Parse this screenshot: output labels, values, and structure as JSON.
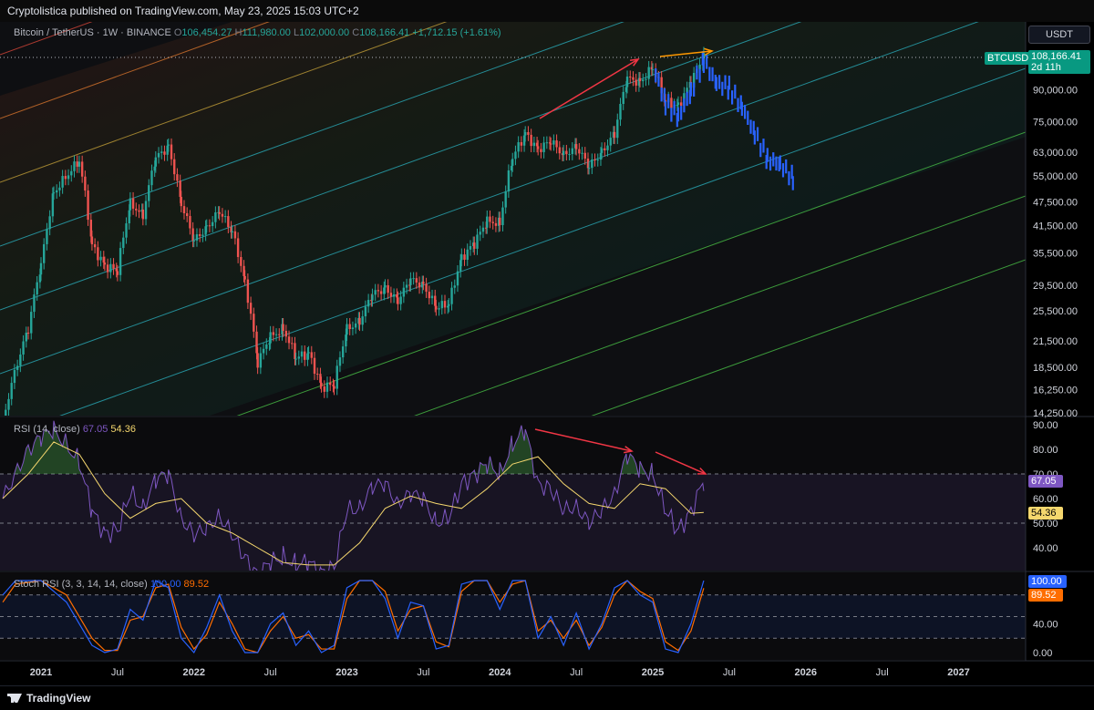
{
  "header": {
    "published_by": "Cryptolistica published on TradingView.com, May 23, 2025 15:03 UTC+2"
  },
  "footer": {
    "brand": "TradingView"
  },
  "symbol_bar": {
    "symbol": "Bitcoin / TetherUS · 1W · BINANCE",
    "open_label": "O",
    "open": "106,454.27",
    "high_label": "H",
    "high": "111,980.00",
    "low_label": "L",
    "low": "102,000.00",
    "close_label": "C",
    "close": "108,166.41",
    "change": "+1,712.15 (+1.61%)"
  },
  "currency_button": "USDT",
  "price_tag": {
    "symbol": "BTCUSDT",
    "price": "108,166.41",
    "countdown": "2d 11h"
  },
  "colors": {
    "up": "#26a69a",
    "down": "#ef5350",
    "projection": "#2962ff",
    "rsi": "#7e57c2",
    "rsi_ma": "#f5d76e",
    "stoch_k": "#2962ff",
    "stoch_d": "#ff6d00",
    "arrow_red": "#f23645",
    "arrow_orange": "#ff9800"
  },
  "chart_data": [
    {
      "type": "candlestick",
      "scale": "log",
      "ylim": [
        14250,
        115000
      ],
      "ticks": [
        14250,
        16250,
        18500,
        21500,
        25500,
        29500,
        35500,
        41500,
        47500,
        55000,
        63000,
        75000,
        90000,
        108166.41
      ],
      "tick_labels": [
        "14,250.00",
        "16,250.00",
        "18,500.00",
        "21,500.00",
        "25,500.00",
        "29,500.00",
        "35,500.00",
        "41,500.00",
        "47,500.00",
        "55,000.00",
        "63,000.00",
        "75,000.00",
        "90,000.00"
      ],
      "x_labels": [
        "2021",
        "Jul",
        "2022",
        "Jul",
        "2023",
        "Jul",
        "2024",
        "Jul",
        "2025",
        "Jul",
        "2026",
        "Jul",
        "2027"
      ],
      "x_label_dates": [
        "2021-01",
        "2021-07",
        "2022-01",
        "2022-07",
        "2023-01",
        "2023-07",
        "2024-01",
        "2024-07",
        "2025-01",
        "2025-07",
        "2026-01",
        "2026-07",
        "2027-01"
      ],
      "price_path": [
        [
          "2020-10",
          13500
        ],
        [
          "2020-12",
          23000
        ],
        [
          "2021-01",
          33000
        ],
        [
          "2021-02",
          50000
        ],
        [
          "2021-04",
          60000
        ],
        [
          "2021-05",
          37000
        ],
        [
          "2021-06",
          33000
        ],
        [
          "2021-07",
          32000
        ],
        [
          "2021-08",
          47000
        ],
        [
          "2021-09",
          44000
        ],
        [
          "2021-10",
          61000
        ],
        [
          "2021-11",
          65000
        ],
        [
          "2021-12",
          47000
        ],
        [
          "2022-01",
          38000
        ],
        [
          "2022-02",
          41000
        ],
        [
          "2022-03",
          45000
        ],
        [
          "2022-04",
          40000
        ],
        [
          "2022-05",
          30000
        ],
        [
          "2022-06",
          19000
        ],
        [
          "2022-07",
          22000
        ],
        [
          "2022-08",
          23000
        ],
        [
          "2022-09",
          19500
        ],
        [
          "2022-10",
          20000
        ],
        [
          "2022-11",
          16500
        ],
        [
          "2022-12",
          16700
        ],
        [
          "2023-01",
          23000
        ],
        [
          "2023-02",
          24000
        ],
        [
          "2023-03",
          28000
        ],
        [
          "2023-04",
          29000
        ],
        [
          "2023-05",
          27000
        ],
        [
          "2023-06",
          30500
        ],
        [
          "2023-07",
          29500
        ],
        [
          "2023-08",
          26000
        ],
        [
          "2023-09",
          26500
        ],
        [
          "2023-10",
          34500
        ],
        [
          "2023-11",
          37500
        ],
        [
          "2023-12",
          42500
        ],
        [
          "2024-01",
          42000
        ],
        [
          "2024-02",
          61000
        ],
        [
          "2024-03",
          70000
        ],
        [
          "2024-04",
          64000
        ],
        [
          "2024-05",
          67000
        ],
        [
          "2024-06",
          62000
        ],
        [
          "2024-07",
          65000
        ],
        [
          "2024-08",
          58000
        ],
        [
          "2024-09",
          63000
        ],
        [
          "2024-10",
          70000
        ],
        [
          "2024-11",
          96000
        ],
        [
          "2024-12",
          94000
        ],
        [
          "2025-01",
          102000
        ],
        [
          "2025-02",
          84000
        ],
        [
          "2025-03",
          82000
        ],
        [
          "2025-04",
          94000
        ],
        [
          "2025-05",
          108166
        ]
      ],
      "projection_path": [
        [
          "2025-01",
          103000
        ],
        [
          "2025-02",
          84000
        ],
        [
          "2025-03",
          78000
        ],
        [
          "2025-04",
          90000
        ],
        [
          "2025-05",
          108000
        ],
        [
          "2025-06",
          95000
        ],
        [
          "2025-07",
          92000
        ],
        [
          "2025-08",
          82000
        ],
        [
          "2025-09",
          70000
        ],
        [
          "2025-10",
          60000
        ],
        [
          "2025-11",
          58000
        ],
        [
          "2025-12",
          53500
        ]
      ],
      "last_price": 108166.41
    },
    {
      "type": "line",
      "name": "RSI (14, close)",
      "values_shown": [
        "67.05",
        "54.36"
      ],
      "ylim": [
        35,
        90
      ],
      "ticks": [
        40,
        50,
        60,
        70,
        80,
        90
      ],
      "tick_labels": [
        "40.00",
        "50.00",
        "60.00",
        "70.00",
        "80.00",
        "90.00"
      ],
      "bands": [
        30,
        50,
        70
      ],
      "rsi_path": [
        [
          "2020-10",
          60
        ],
        [
          "2020-12",
          80
        ],
        [
          "2021-01",
          85
        ],
        [
          "2021-02",
          88
        ],
        [
          "2021-04",
          75
        ],
        [
          "2021-05",
          55
        ],
        [
          "2021-06",
          46
        ],
        [
          "2021-07",
          47
        ],
        [
          "2021-08",
          62
        ],
        [
          "2021-09",
          56
        ],
        [
          "2021-10",
          68
        ],
        [
          "2021-11",
          70
        ],
        [
          "2021-12",
          52
        ],
        [
          "2022-01",
          45
        ],
        [
          "2022-02",
          48
        ],
        [
          "2022-03",
          53
        ],
        [
          "2022-04",
          45
        ],
        [
          "2022-05",
          36
        ],
        [
          "2022-06",
          29
        ],
        [
          "2022-07",
          34
        ],
        [
          "2022-08",
          36
        ],
        [
          "2022-09",
          33
        ],
        [
          "2022-10",
          34
        ],
        [
          "2022-11",
          30
        ],
        [
          "2022-12",
          32
        ],
        [
          "2023-01",
          55
        ],
        [
          "2023-02",
          56
        ],
        [
          "2023-03",
          65
        ],
        [
          "2023-04",
          66
        ],
        [
          "2023-05",
          58
        ],
        [
          "2023-06",
          62
        ],
        [
          "2023-07",
          60
        ],
        [
          "2023-08",
          50
        ],
        [
          "2023-09",
          52
        ],
        [
          "2023-10",
          66
        ],
        [
          "2023-11",
          70
        ],
        [
          "2023-12",
          74
        ],
        [
          "2024-01",
          70
        ],
        [
          "2024-02",
          82
        ],
        [
          "2024-03",
          88
        ],
        [
          "2024-04",
          66
        ],
        [
          "2024-05",
          64
        ],
        [
          "2024-06",
          55
        ],
        [
          "2024-07",
          57
        ],
        [
          "2024-08",
          50
        ],
        [
          "2024-09",
          55
        ],
        [
          "2024-10",
          62
        ],
        [
          "2024-11",
          78
        ],
        [
          "2024-12",
          72
        ],
        [
          "2025-01",
          70
        ],
        [
          "2025-02",
          55
        ],
        [
          "2025-03",
          47
        ],
        [
          "2025-04",
          55
        ],
        [
          "2025-05",
          67.05
        ]
      ],
      "ma_path": [
        [
          "2020-10",
          60
        ],
        [
          "2020-12",
          70
        ],
        [
          "2021-02",
          83
        ],
        [
          "2021-04",
          78
        ],
        [
          "2021-06",
          62
        ],
        [
          "2021-08",
          52
        ],
        [
          "2021-10",
          58
        ],
        [
          "2021-12",
          60
        ],
        [
          "2022-02",
          50
        ],
        [
          "2022-04",
          46
        ],
        [
          "2022-06",
          40
        ],
        [
          "2022-08",
          34
        ],
        [
          "2022-10",
          33
        ],
        [
          "2022-12",
          33
        ],
        [
          "2023-02",
          42
        ],
        [
          "2023-04",
          56
        ],
        [
          "2023-06",
          61
        ],
        [
          "2023-08",
          58
        ],
        [
          "2023-10",
          56
        ],
        [
          "2023-12",
          64
        ],
        [
          "2024-02",
          74
        ],
        [
          "2024-04",
          77
        ],
        [
          "2024-06",
          66
        ],
        [
          "2024-08",
          58
        ],
        [
          "2024-10",
          56
        ],
        [
          "2024-12",
          66
        ],
        [
          "2025-02",
          64
        ],
        [
          "2025-04",
          54
        ],
        [
          "2025-05",
          54.36
        ]
      ]
    },
    {
      "type": "line",
      "name": "Stoch RSI (3, 3, 14, 14, close)",
      "values_shown": [
        "100.00",
        "89.52"
      ],
      "ylim": [
        -5,
        105
      ],
      "ticks": [
        0,
        40,
        100
      ],
      "tick_labels": [
        "0.00",
        "40.00",
        "100.00"
      ],
      "bands": [
        20,
        50,
        80
      ],
      "k_path": [
        [
          "2020-10",
          80
        ],
        [
          "2020-11",
          100
        ],
        [
          "2021-01",
          100
        ],
        [
          "2021-03",
          70
        ],
        [
          "2021-05",
          10
        ],
        [
          "2021-06",
          0
        ],
        [
          "2021-07",
          5
        ],
        [
          "2021-08",
          60
        ],
        [
          "2021-09",
          45
        ],
        [
          "2021-10",
          100
        ],
        [
          "2021-11",
          90
        ],
        [
          "2021-12",
          20
        ],
        [
          "2022-01",
          0
        ],
        [
          "2022-02",
          35
        ],
        [
          "2022-03",
          80
        ],
        [
          "2022-04",
          30
        ],
        [
          "2022-05",
          0
        ],
        [
          "2022-06",
          0
        ],
        [
          "2022-07",
          40
        ],
        [
          "2022-08",
          55
        ],
        [
          "2022-09",
          10
        ],
        [
          "2022-10",
          30
        ],
        [
          "2022-11",
          0
        ],
        [
          "2022-12",
          10
        ],
        [
          "2023-01",
          90
        ],
        [
          "2023-02",
          100
        ],
        [
          "2023-03",
          100
        ],
        [
          "2023-04",
          75
        ],
        [
          "2023-05",
          20
        ],
        [
          "2023-06",
          70
        ],
        [
          "2023-07",
          65
        ],
        [
          "2023-08",
          5
        ],
        [
          "2023-09",
          10
        ],
        [
          "2023-10",
          95
        ],
        [
          "2023-11",
          100
        ],
        [
          "2023-12",
          100
        ],
        [
          "2024-01",
          60
        ],
        [
          "2024-02",
          100
        ],
        [
          "2024-03",
          100
        ],
        [
          "2024-04",
          20
        ],
        [
          "2024-05",
          50
        ],
        [
          "2024-06",
          10
        ],
        [
          "2024-07",
          55
        ],
        [
          "2024-08",
          5
        ],
        [
          "2024-09",
          40
        ],
        [
          "2024-10",
          90
        ],
        [
          "2024-11",
          100
        ],
        [
          "2024-12",
          80
        ],
        [
          "2025-01",
          70
        ],
        [
          "2025-02",
          5
        ],
        [
          "2025-03",
          0
        ],
        [
          "2025-04",
          40
        ],
        [
          "2025-05",
          100
        ]
      ],
      "d_path": [
        [
          "2020-10",
          70
        ],
        [
          "2020-11",
          95
        ],
        [
          "2021-01",
          100
        ],
        [
          "2021-03",
          80
        ],
        [
          "2021-05",
          20
        ],
        [
          "2021-06",
          3
        ],
        [
          "2021-07",
          3
        ],
        [
          "2021-08",
          45
        ],
        [
          "2021-09",
          50
        ],
        [
          "2021-10",
          90
        ],
        [
          "2021-11",
          95
        ],
        [
          "2021-12",
          35
        ],
        [
          "2022-01",
          5
        ],
        [
          "2022-02",
          25
        ],
        [
          "2022-03",
          70
        ],
        [
          "2022-04",
          40
        ],
        [
          "2022-05",
          5
        ],
        [
          "2022-06",
          0
        ],
        [
          "2022-07",
          30
        ],
        [
          "2022-08",
          50
        ],
        [
          "2022-09",
          20
        ],
        [
          "2022-10",
          25
        ],
        [
          "2022-11",
          5
        ],
        [
          "2022-12",
          5
        ],
        [
          "2023-01",
          75
        ],
        [
          "2023-02",
          100
        ],
        [
          "2023-03",
          100
        ],
        [
          "2023-04",
          85
        ],
        [
          "2023-05",
          30
        ],
        [
          "2023-06",
          60
        ],
        [
          "2023-07",
          65
        ],
        [
          "2023-08",
          15
        ],
        [
          "2023-09",
          8
        ],
        [
          "2023-10",
          85
        ],
        [
          "2023-11",
          100
        ],
        [
          "2023-12",
          100
        ],
        [
          "2024-01",
          70
        ],
        [
          "2024-02",
          95
        ],
        [
          "2024-03",
          100
        ],
        [
          "2024-04",
          30
        ],
        [
          "2024-05",
          45
        ],
        [
          "2024-06",
          20
        ],
        [
          "2024-07",
          45
        ],
        [
          "2024-08",
          10
        ],
        [
          "2024-09",
          35
        ],
        [
          "2024-10",
          80
        ],
        [
          "2024-11",
          100
        ],
        [
          "2024-12",
          85
        ],
        [
          "2025-01",
          75
        ],
        [
          "2025-02",
          15
        ],
        [
          "2025-03",
          3
        ],
        [
          "2025-04",
          30
        ],
        [
          "2025-05",
          89.52
        ]
      ]
    }
  ]
}
